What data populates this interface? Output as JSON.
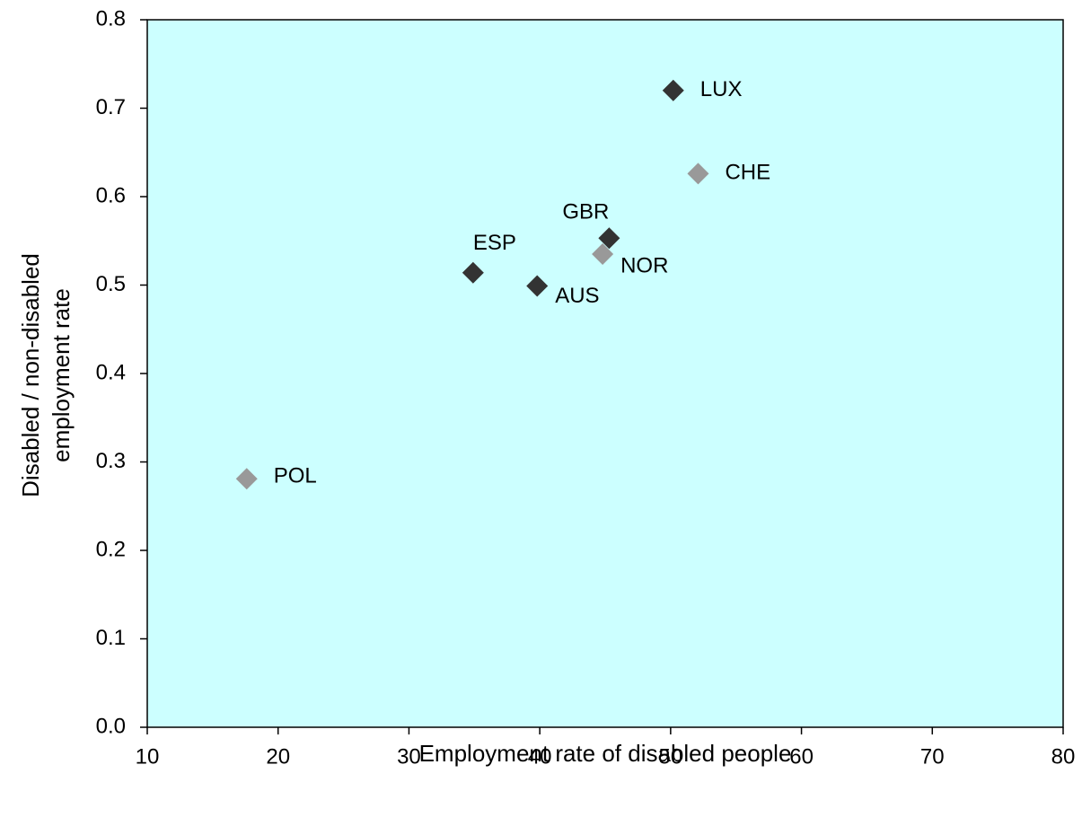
{
  "chart_data": {
    "type": "scatter",
    "title": "",
    "xlabel": "Employment rate of disabled people",
    "ylabel_lines": [
      "Disabled / non-disabled",
      "employment rate"
    ],
    "xlim": [
      10,
      80
    ],
    "ylim": [
      0.0,
      0.8
    ],
    "x_ticks": [
      "10",
      "20",
      "30",
      "40",
      "50",
      "60",
      "70",
      "80"
    ],
    "y_ticks": [
      "0.0",
      "0.1",
      "0.2",
      "0.3",
      "0.4",
      "0.5",
      "0.6",
      "0.7",
      "0.8"
    ],
    "grid": false,
    "plot_background": "#ccffff",
    "points": [
      {
        "label": "LUX",
        "x": 50.2,
        "y": 0.72,
        "color": "#333333"
      },
      {
        "label": "CHE",
        "x": 52.1,
        "y": 0.626,
        "color": "#999999"
      },
      {
        "label": "GBR",
        "x": 45.3,
        "y": 0.553,
        "color": "#333333"
      },
      {
        "label": "NOR",
        "x": 44.8,
        "y": 0.535,
        "color": "#999999"
      },
      {
        "label": "ESP",
        "x": 34.9,
        "y": 0.514,
        "color": "#333333"
      },
      {
        "label": "AUS",
        "x": 39.8,
        "y": 0.499,
        "color": "#333333"
      },
      {
        "label": "POL",
        "x": 17.6,
        "y": 0.281,
        "color": "#999999"
      }
    ]
  }
}
